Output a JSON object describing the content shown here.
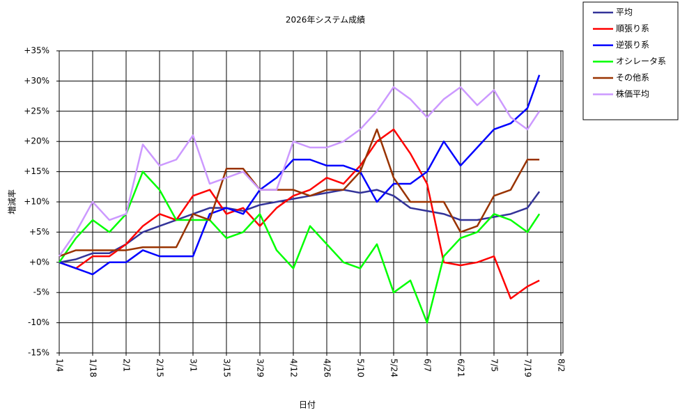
{
  "chart_data": {
    "type": "line",
    "title": "2026年システム成績",
    "x_label": "日付",
    "y_label": "増減率",
    "x": [
      "1/4",
      "1/11",
      "1/18",
      "1/25",
      "2/1",
      "2/8",
      "2/15",
      "2/22",
      "3/1",
      "3/8",
      "3/15",
      "3/22",
      "3/29",
      "4/5",
      "4/12",
      "4/19",
      "4/26",
      "5/3",
      "5/10",
      "5/17",
      "5/24",
      "5/31",
      "6/7",
      "6/14",
      "6/21",
      "6/28",
      "7/5",
      "7/12",
      "7/19",
      "7/24"
    ],
    "xlim": [
      "1/4",
      "8/2"
    ],
    "xticks": [
      "1/4",
      "1/18",
      "2/1",
      "2/15",
      "3/1",
      "3/15",
      "3/29",
      "4/12",
      "4/26",
      "5/10",
      "5/24",
      "6/7",
      "6/21",
      "7/5",
      "7/19",
      "8/2"
    ],
    "ylim": [
      -15,
      35
    ],
    "yticks": [
      {
        "value": -15,
        "label": "-15%"
      },
      {
        "value": -10,
        "label": "-10%"
      },
      {
        "value": -5,
        "label": "-5%"
      },
      {
        "value": 0,
        "label": "+0%"
      },
      {
        "value": 5,
        "label": "+5%"
      },
      {
        "value": 10,
        "label": "+10%"
      },
      {
        "value": 15,
        "label": "+15%"
      },
      {
        "value": 20,
        "label": "+20%"
      },
      {
        "value": 25,
        "label": "+25%"
      },
      {
        "value": 30,
        "label": "+30%"
      },
      {
        "value": 35,
        "label": "+35%"
      }
    ],
    "grid": true,
    "legend": "outside-top-right",
    "series": [
      {
        "name": "平均",
        "color": "#333399",
        "values": [
          0,
          0.5,
          1.5,
          1.5,
          3,
          5,
          6,
          7,
          8,
          9,
          9,
          8.5,
          9.5,
          10,
          10.5,
          11,
          11.5,
          12,
          11.5,
          12,
          11,
          9,
          8.5,
          8,
          7,
          7,
          7.5,
          8,
          9,
          11.7
        ]
      },
      {
        "name": "順張り系",
        "color": "#ff0000",
        "values": [
          0,
          -1,
          1,
          1,
          3,
          6,
          8,
          7,
          11,
          12,
          8,
          9,
          6,
          9,
          11,
          12,
          14,
          13,
          16,
          20,
          22,
          18,
          13,
          0,
          -0.5,
          0,
          1,
          -6,
          -4,
          -3
        ]
      },
      {
        "name": "逆張り系",
        "color": "#0000ff",
        "values": [
          0,
          -1,
          -2,
          0,
          0,
          2,
          1,
          1,
          1,
          8,
          9,
          8,
          12,
          14,
          17,
          17,
          16,
          16,
          15,
          10,
          13,
          13,
          15,
          20,
          16,
          19,
          22,
          23,
          25.5,
          31
        ]
      },
      {
        "name": "オシレータ系",
        "color": "#00ff00",
        "values": [
          0,
          4,
          7,
          5,
          8,
          15,
          12,
          7,
          7,
          7,
          4,
          5,
          8,
          2,
          -1,
          6,
          3,
          0,
          -1,
          3,
          -5,
          -3,
          -10,
          1,
          4,
          5,
          8,
          7,
          5,
          8
        ]
      },
      {
        "name": "その他系",
        "color": "#993300",
        "values": [
          1,
          2,
          2,
          2,
          2,
          2.5,
          2.5,
          2.5,
          8,
          7,
          15.5,
          15.5,
          12,
          12,
          12,
          11,
          12,
          12,
          15,
          22,
          14,
          10,
          10,
          10,
          5,
          6,
          11,
          12,
          17,
          17
        ]
      },
      {
        "name": "株価平均",
        "color": "#cc99ff",
        "values": [
          1,
          5,
          10,
          7,
          8,
          19.5,
          16,
          17,
          21,
          13,
          14,
          15,
          12,
          12,
          20,
          19,
          19,
          20,
          22,
          25,
          29,
          27,
          24,
          27,
          29,
          26,
          28.5,
          24,
          22,
          25
        ]
      }
    ]
  }
}
